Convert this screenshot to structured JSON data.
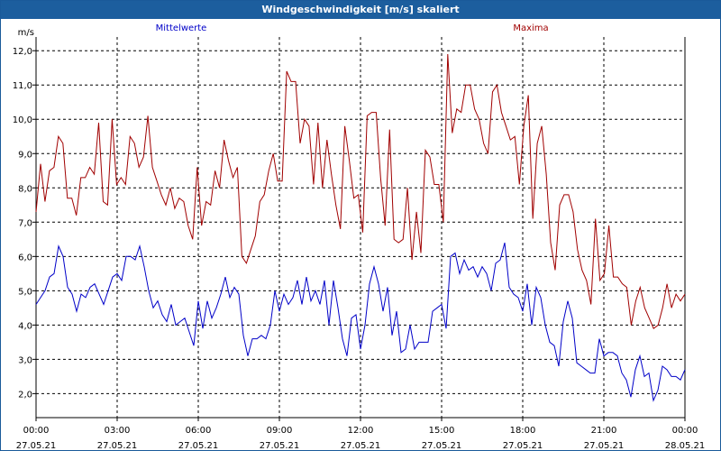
{
  "window": {
    "title": "Windgeschwindigkeit [m/s] skaliert"
  },
  "chart_data": {
    "type": "line",
    "ylabel": "m/s",
    "ylim": [
      1.3,
      12.4
    ],
    "yticks": [
      "2,0",
      "3,0",
      "4,0",
      "5,0",
      "6,0",
      "7,0",
      "8,0",
      "9,0",
      "10,0",
      "11,0",
      "12,0"
    ],
    "ytick_values": [
      2,
      3,
      4,
      5,
      6,
      7,
      8,
      9,
      10,
      11,
      12
    ],
    "xlim": [
      0,
      24
    ],
    "xticks": [
      {
        "t": "00:00",
        "d": "27.05.21"
      },
      {
        "t": "03:00",
        "d": "27.05.21"
      },
      {
        "t": "06:00",
        "d": "27.05.21"
      },
      {
        "t": "09:00",
        "d": "27.05.21"
      },
      {
        "t": "12:00",
        "d": "27.05.21"
      },
      {
        "t": "15:00",
        "d": "27.05.21"
      },
      {
        "t": "18:00",
        "d": "27.05.21"
      },
      {
        "t": "21:00",
        "d": "27.05.21"
      },
      {
        "t": "00:00",
        "d": "28.05.21"
      }
    ],
    "grid": true,
    "legend_placement": "top",
    "series": [
      {
        "name": "Mittelwerte",
        "color": "#0000c8",
        "values": [
          4.6,
          4.8,
          5.0,
          5.4,
          5.5,
          6.3,
          6.0,
          5.1,
          4.9,
          4.4,
          4.9,
          4.8,
          5.1,
          5.2,
          4.9,
          4.6,
          5.0,
          5.4,
          5.5,
          5.3,
          6.0,
          6.0,
          5.9,
          6.3,
          5.7,
          5.0,
          4.5,
          4.7,
          4.3,
          4.1,
          4.6,
          4.0,
          4.1,
          4.2,
          3.8,
          3.4,
          4.7,
          3.9,
          4.7,
          4.2,
          4.5,
          4.9,
          5.4,
          4.8,
          5.1,
          4.9,
          3.7,
          3.1,
          3.6,
          3.6,
          3.7,
          3.6,
          4.0,
          5.0,
          4.4,
          4.9,
          4.6,
          4.8,
          5.3,
          4.6,
          5.4,
          4.7,
          5.0,
          4.6,
          5.3,
          4.0,
          5.3,
          4.5,
          3.6,
          3.1,
          4.2,
          4.3,
          3.3,
          4.0,
          5.2,
          5.7,
          5.2,
          4.4,
          5.1,
          3.7,
          4.4,
          3.2,
          3.3,
          4.0,
          3.3,
          3.5,
          3.5,
          3.5,
          4.4,
          4.5,
          4.6,
          3.9,
          6.0,
          6.1,
          5.5,
          5.9,
          5.6,
          5.7,
          5.4,
          5.7,
          5.5,
          5.0,
          5.8,
          5.9,
          6.4,
          5.1,
          4.9,
          4.8,
          4.4,
          5.2,
          4.0,
          5.1,
          4.8,
          4.0,
          3.5,
          3.4,
          2.8,
          4.1,
          4.7,
          4.2,
          2.9,
          2.8,
          2.7,
          2.6,
          2.6,
          3.6,
          3.1,
          3.2,
          3.2,
          3.1,
          2.6,
          2.4,
          1.9,
          2.7,
          3.1,
          2.5,
          2.6,
          1.8,
          2.1,
          2.8,
          2.7,
          2.5,
          2.5,
          2.4,
          2.7
        ]
      },
      {
        "name": "Maxima",
        "color": "#a00000",
        "values": [
          7.3,
          8.7,
          7.6,
          8.5,
          8.6,
          9.5,
          9.3,
          7.7,
          7.7,
          7.2,
          8.3,
          8.3,
          8.6,
          8.4,
          9.9,
          7.6,
          7.5,
          10.0,
          8.1,
          8.3,
          8.1,
          9.5,
          9.3,
          8.6,
          8.9,
          10.1,
          8.6,
          8.2,
          7.8,
          7.5,
          8.0,
          7.4,
          7.7,
          7.6,
          6.9,
          6.5,
          8.6,
          6.9,
          7.6,
          7.5,
          8.5,
          8.0,
          9.4,
          8.8,
          8.3,
          8.6,
          6.0,
          5.8,
          6.2,
          6.6,
          7.6,
          7.8,
          8.5,
          9.0,
          8.2,
          8.2,
          11.4,
          11.1,
          11.1,
          9.3,
          10.0,
          9.8,
          8.1,
          9.9,
          8.0,
          9.4,
          8.4,
          7.5,
          6.8,
          9.8,
          8.8,
          7.7,
          7.8,
          6.7,
          10.1,
          10.2,
          10.2,
          8.3,
          6.9,
          9.7,
          6.5,
          6.4,
          6.5,
          8.0,
          5.9,
          7.3,
          6.1,
          9.1,
          8.9,
          8.1,
          8.1,
          7.0,
          11.9,
          9.6,
          10.3,
          10.2,
          11.0,
          11.0,
          10.3,
          10.0,
          9.3,
          9.0,
          10.8,
          11.0,
          10.2,
          9.8,
          9.4,
          9.5,
          8.1,
          9.8,
          10.7,
          7.1,
          9.3,
          9.8,
          8.4,
          6.4,
          5.6,
          7.5,
          7.8,
          7.8,
          7.3,
          6.2,
          5.6,
          5.3,
          4.6,
          7.1,
          5.3,
          5.5,
          6.9,
          5.4,
          5.4,
          5.2,
          5.1,
          4.0,
          4.7,
          5.1,
          4.5,
          4.2,
          3.9,
          4.0,
          4.5,
          5.2,
          4.5,
          4.9,
          4.7,
          4.9
        ]
      }
    ]
  }
}
